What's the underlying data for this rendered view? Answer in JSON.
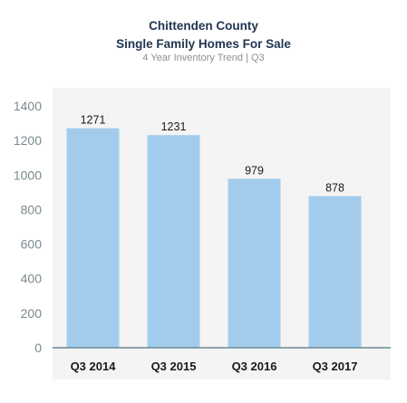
{
  "header": {
    "title_line1": "Chittenden County",
    "title_line2": "Single Family Homes For Sale",
    "subtitle": "4 Year Inventory Trend | Q3"
  },
  "colors": {
    "bar": "#a3ccec",
    "title": "#1f3550",
    "axis_text": "#7a8a8e",
    "axis_line": "#6a8a94",
    "plot_background": "#f4f4f4",
    "label_text": "#1a1a1a"
  },
  "chart_data": {
    "type": "bar",
    "title": "Chittenden County Single Family Homes For Sale",
    "subtitle": "4 Year Inventory Trend | Q3",
    "categories": [
      "Q3 2014",
      "Q3 2015",
      "Q3 2016",
      "Q3 2017"
    ],
    "values": [
      1271,
      1231,
      979,
      878
    ],
    "data_labels": [
      "1271",
      "1231",
      "979",
      "878"
    ],
    "xlabel": "",
    "ylabel": "",
    "ylim": [
      0,
      1400
    ],
    "yticks": [
      0,
      200,
      400,
      600,
      800,
      1000,
      1200,
      1400
    ],
    "grid": false,
    "legend": "none"
  }
}
